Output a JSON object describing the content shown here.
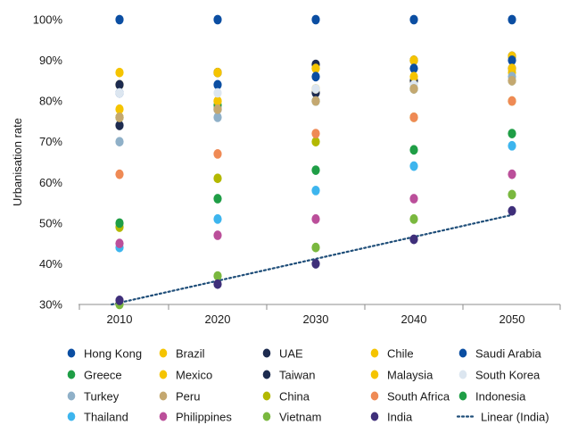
{
  "chart_data": {
    "type": "scatter",
    "ylabel": "Urbanisation rate",
    "xlabel": "",
    "x": [
      "2010",
      "2020",
      "2030",
      "2040",
      "2050"
    ],
    "ylim": [
      30,
      100
    ],
    "yticks": [
      "30%",
      "40%",
      "50%",
      "60%",
      "70%",
      "80%",
      "90%",
      "100%"
    ],
    "grid": false,
    "legend_position": "bottom",
    "trendline": {
      "name": "Linear (India)",
      "color": "#1f4e79",
      "style": "dotted",
      "of_series": "India"
    },
    "series": [
      {
        "name": "Hong Kong",
        "color": "#0b4ea2",
        "values": [
          100,
          100,
          100,
          100,
          100
        ]
      },
      {
        "name": "Brazil",
        "color": "#f5c400",
        "values": [
          84,
          87,
          88,
          90,
          91
        ]
      },
      {
        "name": "UAE",
        "color": "#1d2b4f",
        "values": [
          84,
          87,
          89,
          90,
          91
        ]
      },
      {
        "name": "Chile",
        "color": "#f5c400",
        "values": [
          87,
          87,
          88,
          90,
          91
        ]
      },
      {
        "name": "Saudi Arabia",
        "color": "#0b4ea2",
        "values": [
          82,
          84,
          86,
          88,
          90
        ]
      },
      {
        "name": "Greece",
        "color": "#1f9e46",
        "values": [
          76,
          79,
          80,
          83,
          85
        ]
      },
      {
        "name": "Mexico",
        "color": "#f5c400",
        "values": [
          78,
          80,
          83,
          85,
          87
        ]
      },
      {
        "name": "Taiwan",
        "color": "#1d2b4f",
        "values": [
          74,
          78,
          82,
          85,
          88
        ]
      },
      {
        "name": "Malaysia",
        "color": "#f5c400",
        "values": [
          76,
          80,
          83,
          86,
          88
        ]
      },
      {
        "name": "South Korea",
        "color": "#dce6f0",
        "values": [
          82,
          82,
          83,
          84,
          85
        ]
      },
      {
        "name": "Turkey",
        "color": "#8fb0c8",
        "values": [
          70,
          76,
          80,
          83,
          86
        ]
      },
      {
        "name": "Peru",
        "color": "#c4a870",
        "values": [
          76,
          78,
          80,
          83,
          85
        ]
      },
      {
        "name": "China",
        "color": "#b3b800",
        "values": [
          49,
          61,
          70,
          76,
          80
        ]
      },
      {
        "name": "South Africa",
        "color": "#ef8a55",
        "values": [
          62,
          67,
          72,
          76,
          80
        ]
      },
      {
        "name": "Indonesia",
        "color": "#1f9e46",
        "values": [
          50,
          56,
          63,
          68,
          72
        ]
      },
      {
        "name": "Thailand",
        "color": "#3db5ee",
        "values": [
          44,
          51,
          58,
          64,
          69
        ]
      },
      {
        "name": "Philippines",
        "color": "#bb4f9a",
        "values": [
          45,
          47,
          51,
          56,
          62
        ]
      },
      {
        "name": "Vietnam",
        "color": "#7ab83f",
        "values": [
          30,
          37,
          44,
          51,
          57
        ]
      },
      {
        "name": "India",
        "color": "#3f2f7a",
        "values": [
          31,
          35,
          40,
          46,
          53
        ]
      }
    ]
  }
}
